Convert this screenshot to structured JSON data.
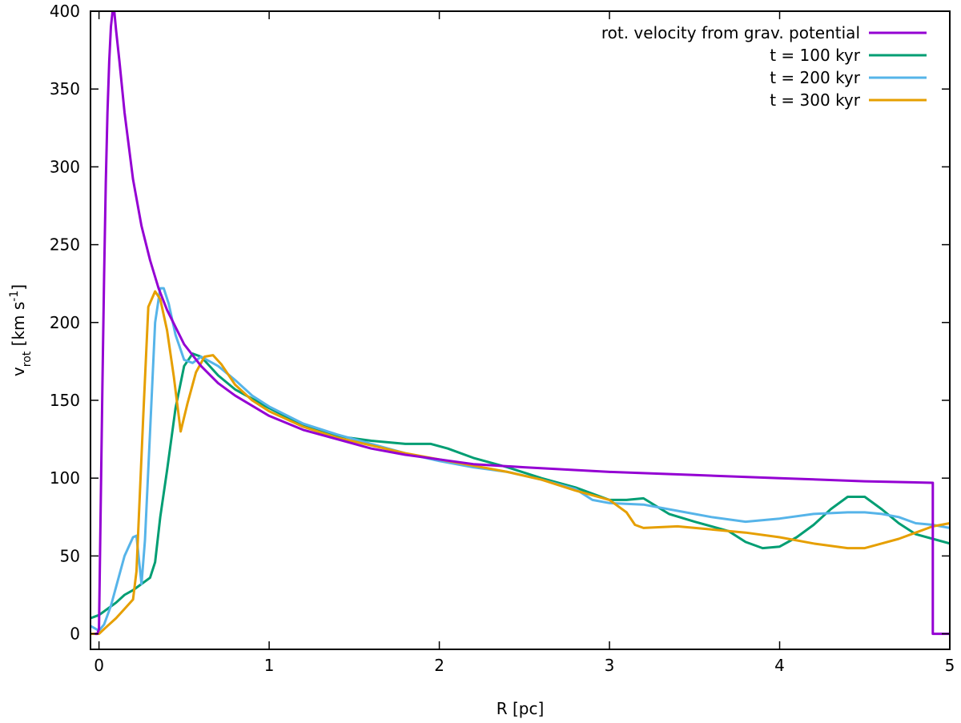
{
  "chart_data": {
    "type": "line",
    "xlabel": "R [pc]",
    "ylabel": {
      "base": "v",
      "sub": "rot",
      "rest": " [km s",
      "sup": "-1",
      "close": "]"
    },
    "xlim": [
      -0.05,
      5
    ],
    "ylim": [
      -10,
      400
    ],
    "xticks": [
      0,
      1,
      2,
      3,
      4,
      5
    ],
    "yticks": [
      0,
      50,
      100,
      150,
      200,
      250,
      300,
      350,
      400
    ],
    "grid": false,
    "legend_position": "top-right",
    "series": [
      {
        "name": "rot. velocity from grav. potential",
        "color": "#9400d3",
        "points": [
          [
            -0.02,
            0
          ],
          [
            -0.01,
            0
          ],
          [
            0,
            3
          ],
          [
            0.01,
            80
          ],
          [
            0.02,
            160
          ],
          [
            0.03,
            230
          ],
          [
            0.04,
            290
          ],
          [
            0.05,
            335
          ],
          [
            0.06,
            368
          ],
          [
            0.07,
            390
          ],
          [
            0.08,
            400
          ],
          [
            0.09,
            400
          ],
          [
            0.1,
            388
          ],
          [
            0.12,
            368
          ],
          [
            0.15,
            335
          ],
          [
            0.2,
            292
          ],
          [
            0.25,
            262
          ],
          [
            0.3,
            240
          ],
          [
            0.35,
            222
          ],
          [
            0.4,
            208
          ],
          [
            0.5,
            186
          ],
          [
            0.6,
            172
          ],
          [
            0.7,
            161
          ],
          [
            0.8,
            153
          ],
          [
            1,
            140
          ],
          [
            1.2,
            131
          ],
          [
            1.4,
            125
          ],
          [
            1.6,
            119
          ],
          [
            1.8,
            115
          ],
          [
            2,
            112
          ],
          [
            2.2,
            109
          ],
          [
            2.5,
            107
          ],
          [
            3,
            104
          ],
          [
            3.5,
            102
          ],
          [
            4,
            100
          ],
          [
            4.5,
            98
          ],
          [
            4.9,
            97
          ],
          [
            4.9,
            0
          ],
          [
            5,
            0
          ]
        ]
      },
      {
        "name": "t = 100 kyr",
        "color": "#009e73",
        "points": [
          [
            -0.05,
            10
          ],
          [
            0,
            12
          ],
          [
            0.05,
            16
          ],
          [
            0.1,
            20
          ],
          [
            0.15,
            25
          ],
          [
            0.2,
            28
          ],
          [
            0.25,
            32
          ],
          [
            0.3,
            36
          ],
          [
            0.33,
            46
          ],
          [
            0.36,
            75
          ],
          [
            0.4,
            105
          ],
          [
            0.45,
            145
          ],
          [
            0.5,
            172
          ],
          [
            0.55,
            180
          ],
          [
            0.6,
            178
          ],
          [
            0.7,
            166
          ],
          [
            0.8,
            157
          ],
          [
            0.9,
            151
          ],
          [
            1,
            145
          ],
          [
            1.2,
            134
          ],
          [
            1.4,
            127
          ],
          [
            1.6,
            124
          ],
          [
            1.8,
            122
          ],
          [
            1.95,
            122
          ],
          [
            2.05,
            119
          ],
          [
            2.2,
            113
          ],
          [
            2.4,
            107
          ],
          [
            2.6,
            100
          ],
          [
            2.8,
            94
          ],
          [
            3,
            86
          ],
          [
            3.1,
            86
          ],
          [
            3.2,
            87
          ],
          [
            3.35,
            77
          ],
          [
            3.5,
            72
          ],
          [
            3.7,
            66
          ],
          [
            3.8,
            59
          ],
          [
            3.9,
            55
          ],
          [
            4,
            56
          ],
          [
            4.1,
            62
          ],
          [
            4.2,
            70
          ],
          [
            4.3,
            80
          ],
          [
            4.4,
            88
          ],
          [
            4.5,
            88
          ],
          [
            4.6,
            80
          ],
          [
            4.7,
            71
          ],
          [
            4.8,
            64
          ],
          [
            4.9,
            61
          ],
          [
            5,
            58
          ]
        ]
      },
      {
        "name": "t = 200 kyr",
        "color": "#56b4e9",
        "points": [
          [
            -0.05,
            5
          ],
          [
            0,
            2
          ],
          [
            0.03,
            6
          ],
          [
            0.07,
            18
          ],
          [
            0.1,
            30
          ],
          [
            0.15,
            50
          ],
          [
            0.2,
            62
          ],
          [
            0.22,
            63
          ],
          [
            0.25,
            32
          ],
          [
            0.27,
            60
          ],
          [
            0.3,
            130
          ],
          [
            0.33,
            200
          ],
          [
            0.36,
            222
          ],
          [
            0.38,
            222
          ],
          [
            0.41,
            212
          ],
          [
            0.45,
            192
          ],
          [
            0.5,
            176
          ],
          [
            0.55,
            174
          ],
          [
            0.6,
            178
          ],
          [
            0.7,
            172
          ],
          [
            0.8,
            163
          ],
          [
            0.9,
            153
          ],
          [
            1,
            146
          ],
          [
            1.2,
            135
          ],
          [
            1.4,
            128
          ],
          [
            1.6,
            122
          ],
          [
            1.8,
            116
          ],
          [
            2,
            111
          ],
          [
            2.2,
            107
          ],
          [
            2.4,
            104
          ],
          [
            2.6,
            99
          ],
          [
            2.8,
            93
          ],
          [
            2.9,
            86
          ],
          [
            3,
            84
          ],
          [
            3.2,
            83
          ],
          [
            3.4,
            79
          ],
          [
            3.6,
            75
          ],
          [
            3.8,
            72
          ],
          [
            4,
            74
          ],
          [
            4.2,
            77
          ],
          [
            4.4,
            78
          ],
          [
            4.5,
            78
          ],
          [
            4.6,
            77
          ],
          [
            4.7,
            75
          ],
          [
            4.8,
            71
          ],
          [
            4.9,
            70
          ],
          [
            5,
            68
          ]
        ]
      },
      {
        "name": "t = 300 kyr",
        "color": "#e69f00",
        "points": [
          [
            -0.05,
            0
          ],
          [
            0,
            0
          ],
          [
            0.05,
            5
          ],
          [
            0.1,
            10
          ],
          [
            0.15,
            16
          ],
          [
            0.2,
            22
          ],
          [
            0.22,
            40
          ],
          [
            0.26,
            140
          ],
          [
            0.29,
            210
          ],
          [
            0.33,
            220
          ],
          [
            0.36,
            215
          ],
          [
            0.4,
            195
          ],
          [
            0.44,
            165
          ],
          [
            0.48,
            130
          ],
          [
            0.52,
            148
          ],
          [
            0.57,
            168
          ],
          [
            0.62,
            178
          ],
          [
            0.67,
            179
          ],
          [
            0.72,
            173
          ],
          [
            0.8,
            160
          ],
          [
            0.9,
            150
          ],
          [
            1,
            143
          ],
          [
            1.2,
            133
          ],
          [
            1.4,
            126
          ],
          [
            1.6,
            121
          ],
          [
            1.8,
            116
          ],
          [
            2,
            112
          ],
          [
            2.2,
            108
          ],
          [
            2.4,
            104
          ],
          [
            2.6,
            99
          ],
          [
            2.8,
            92
          ],
          [
            3,
            86
          ],
          [
            3.1,
            78
          ],
          [
            3.15,
            70
          ],
          [
            3.2,
            68
          ],
          [
            3.4,
            69
          ],
          [
            3.6,
            67
          ],
          [
            3.8,
            65
          ],
          [
            4,
            62
          ],
          [
            4.2,
            58
          ],
          [
            4.4,
            55
          ],
          [
            4.5,
            55
          ],
          [
            4.6,
            58
          ],
          [
            4.7,
            61
          ],
          [
            4.8,
            65
          ],
          [
            4.9,
            69
          ],
          [
            5,
            71
          ]
        ]
      }
    ]
  }
}
